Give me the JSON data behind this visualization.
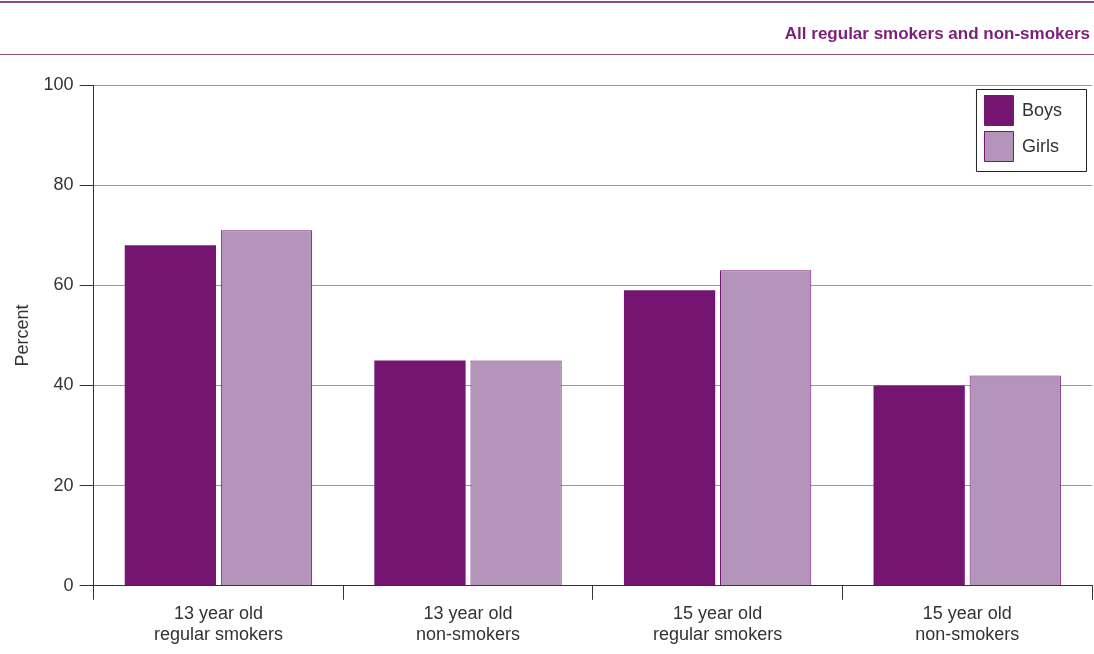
{
  "chart_data": {
    "type": "bar",
    "title": "All regular smokers and non-smokers",
    "ylabel": "Percent",
    "categories": [
      "13 year old\nregular smokers",
      "13 year old\nnon-smokers",
      "15 year old\nregular smokers",
      "15 year old\nnon-smokers"
    ],
    "series": [
      {
        "name": "Boys",
        "color": "#751572",
        "values": [
          68,
          45,
          59,
          40
        ]
      },
      {
        "name": "Girls",
        "color": "#b594bb",
        "values": [
          71,
          45,
          63,
          42
        ]
      }
    ],
    "ylim": [
      0,
      100
    ],
    "yticks": [
      0,
      20,
      40,
      60,
      80,
      100
    ],
    "grid": "y",
    "legend": "top right"
  }
}
